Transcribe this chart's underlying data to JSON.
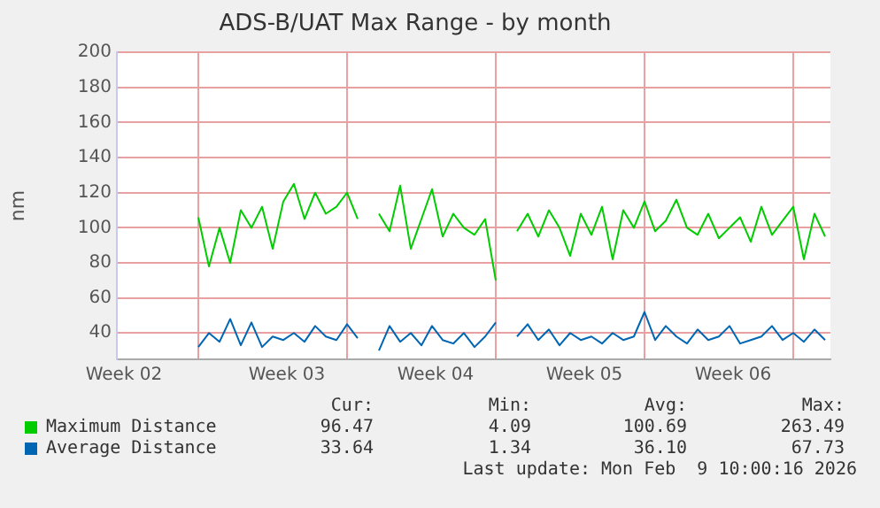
{
  "chart_data": {
    "type": "line",
    "title": "ADS-B/UAT Max Range - by month",
    "ylabel": "nm",
    "x": [
      "2026-01-11T00:00",
      "2026-01-11T12:00",
      "2026-01-12T00:00",
      "2026-01-12T12:00",
      "2026-01-13T00:00",
      "2026-01-13T12:00",
      "2026-01-14T00:00",
      "2026-01-14T12:00",
      "2026-01-15T00:00",
      "2026-01-15T12:00",
      "2026-01-16T00:00",
      "2026-01-16T12:00",
      "2026-01-17T00:00",
      "2026-01-17T12:00",
      "2026-01-18T00:00",
      "2026-01-18T12:00",
      "2026-01-19T00:00",
      "2026-01-19T12:00",
      "2026-01-20T00:00",
      "2026-01-20T12:00",
      "2026-01-21T00:00",
      "2026-01-21T12:00",
      "2026-01-22T00:00",
      "2026-01-22T12:00",
      "2026-01-23T00:00",
      "2026-01-23T12:00",
      "2026-01-24T00:00",
      "2026-01-24T12:00",
      "2026-01-25T00:00",
      "2026-01-25T12:00",
      "2026-01-26T00:00",
      "2026-01-26T12:00",
      "2026-01-27T00:00",
      "2026-01-27T12:00",
      "2026-01-28T00:00",
      "2026-01-28T12:00",
      "2026-01-29T00:00",
      "2026-01-29T12:00",
      "2026-01-30T00:00",
      "2026-01-30T12:00",
      "2026-01-31T00:00",
      "2026-01-31T12:00",
      "2026-02-01T00:00",
      "2026-02-01T12:00",
      "2026-02-02T00:00",
      "2026-02-02T12:00",
      "2026-02-03T00:00",
      "2026-02-03T12:00",
      "2026-02-04T00:00",
      "2026-02-04T12:00",
      "2026-02-05T00:00",
      "2026-02-05T12:00",
      "2026-02-06T00:00",
      "2026-02-06T12:00",
      "2026-02-07T00:00",
      "2026-02-07T12:00",
      "2026-02-08T00:00",
      "2026-02-08T12:00",
      "2026-02-09T00:00",
      "2026-02-09T12:00"
    ],
    "series": [
      {
        "name": "Maximum Distance",
        "color": "#00cc00",
        "values": [
          106,
          78,
          100,
          80,
          110,
          100,
          112,
          88,
          115,
          125,
          105,
          120,
          108,
          112,
          120,
          105,
          null,
          108,
          98,
          124,
          88,
          105,
          122,
          95,
          108,
          100,
          96,
          105,
          70,
          null,
          98,
          108,
          95,
          110,
          100,
          84,
          108,
          96,
          112,
          82,
          110,
          100,
          115,
          98,
          104,
          116,
          100,
          96,
          108,
          94,
          100,
          106,
          92,
          112,
          96,
          104,
          112,
          82,
          108,
          95
        ]
      },
      {
        "name": "Average Distance",
        "color": "#0066b3",
        "values": [
          32,
          40,
          35,
          48,
          33,
          46,
          32,
          38,
          36,
          40,
          35,
          44,
          38,
          36,
          45,
          37,
          null,
          30,
          44,
          35,
          40,
          33,
          44,
          36,
          34,
          40,
          32,
          38,
          46,
          null,
          38,
          45,
          36,
          42,
          33,
          40,
          36,
          38,
          34,
          40,
          36,
          38,
          52,
          36,
          44,
          38,
          34,
          42,
          36,
          38,
          44,
          34,
          36,
          38,
          44,
          36,
          40,
          35,
          42,
          36
        ]
      }
    ],
    "xlim": [
      "2026-01-07T04:00",
      "2026-02-09T18:00"
    ],
    "xticks": [
      {
        "value": "2026-01-07T12:00",
        "label": "Week 02"
      },
      {
        "value": "2026-01-11T00:00",
        "label": null
      },
      {
        "value": "2026-01-15T04:00",
        "label": "Week 03"
      },
      {
        "value": "2026-01-18T00:00",
        "label": null
      },
      {
        "value": "2026-01-22T04:00",
        "label": "Week 04"
      },
      {
        "value": "2026-01-25T00:00",
        "label": null
      },
      {
        "value": "2026-01-29T04:00",
        "label": "Week 05"
      },
      {
        "value": "2026-02-01T00:00",
        "label": null
      },
      {
        "value": "2026-02-05T04:00",
        "label": "Week 06"
      },
      {
        "value": "2026-02-08T00:00",
        "label": null
      }
    ],
    "ylim": [
      25,
      200
    ],
    "yticks": [
      40,
      60,
      80,
      100,
      120,
      140,
      160,
      180,
      200
    ],
    "grid": true,
    "legend": "bottom",
    "marker": "none",
    "line_style": "solid",
    "annotations": [
      "Cur:",
      "Min:",
      "Avg:",
      "Max:",
      "96.47",
      "4.09",
      "100.69",
      "263.49",
      "33.64",
      "1.34",
      "36.10",
      "67.73",
      "Last update: Mon Feb  9 10:00:16 2026"
    ]
  }
}
